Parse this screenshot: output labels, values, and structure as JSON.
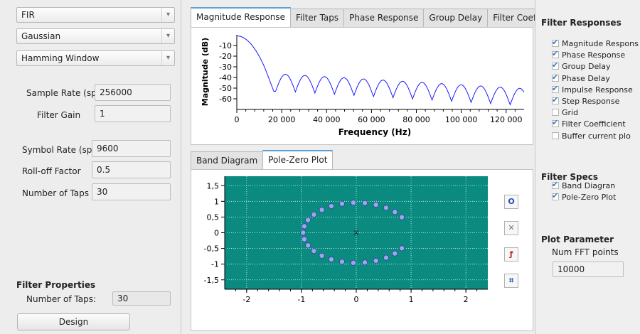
{
  "left": {
    "combos": [
      {
        "value": "FIR"
      },
      {
        "value": "Gaussian"
      },
      {
        "value": "Hamming Window"
      }
    ],
    "sample_rate": {
      "label": "Sample Rate (sps)",
      "value": "256000"
    },
    "filter_gain": {
      "label": "Filter Gain",
      "value": "1"
    },
    "symbol_rate": {
      "label": "Symbol Rate (sps)",
      "value": "9600"
    },
    "rolloff": {
      "label": "Roll-off Factor",
      "value": "0.5"
    },
    "num_taps": {
      "label": "Number of Taps",
      "value": "30"
    },
    "properties_title": "Filter Properties",
    "prop_taps_label": "Number of Taps:",
    "prop_taps_value": "30",
    "design_label": "Design"
  },
  "top_tabs": [
    "Magnitude Response",
    "Filter Taps",
    "Phase Response",
    "Group Delay",
    "Filter Coefficients"
  ],
  "top_tab_scroll": [
    "<",
    ">"
  ],
  "bottom_tabs": [
    "Band Diagram",
    "Pole-Zero Plot"
  ],
  "magnitude_plot": {
    "xlabel": "Frequency (Hz)",
    "ylabel": "Magnitude (dB)",
    "xticks": [
      "0",
      "20 000",
      "40 000",
      "60 000",
      "80 000",
      "100 000",
      "120 000"
    ],
    "yticks": [
      "-10",
      "-20",
      "-30",
      "-40",
      "-50",
      "-60"
    ]
  },
  "pole_zero_plot": {
    "xticks": [
      "-2",
      "-1",
      "0",
      "1",
      "2"
    ],
    "yticks": [
      "1,5",
      "1",
      "0,5",
      "0",
      "-0,5",
      "-1",
      "-1,5"
    ],
    "background": "#0b8a80"
  },
  "pz_tools": [
    {
      "name": "zero-tool-icon",
      "glyph": "O"
    },
    {
      "name": "pole-tool-icon",
      "glyph": "✕"
    },
    {
      "name": "conjugate-tool-icon",
      "glyph": "ƒ"
    },
    {
      "name": "delete-all-tool-icon",
      "glyph": "⌗"
    }
  ],
  "right": {
    "responses_title": "Filter Responses",
    "responses": [
      {
        "label": "Magnitude Respons",
        "checked": true
      },
      {
        "label": "Phase Response",
        "checked": true
      },
      {
        "label": "Group Delay",
        "checked": true
      },
      {
        "label": "Phase Delay",
        "checked": true
      },
      {
        "label": "Impulse Response",
        "checked": true
      },
      {
        "label": "Step Response",
        "checked": true
      },
      {
        "label": "Grid",
        "checked": false
      },
      {
        "label": "Filter Coefficient",
        "checked": true
      },
      {
        "label": "Buffer current plo",
        "checked": false
      }
    ],
    "specs_title": "Filter Specs",
    "specs": [
      {
        "label": "Band Diagran",
        "checked": true
      },
      {
        "label": "Pole-Zero Plot",
        "checked": true
      }
    ],
    "plot_param_title": "Plot Parameter",
    "fft_label": "Num FFT points",
    "fft_value": "10000"
  }
}
